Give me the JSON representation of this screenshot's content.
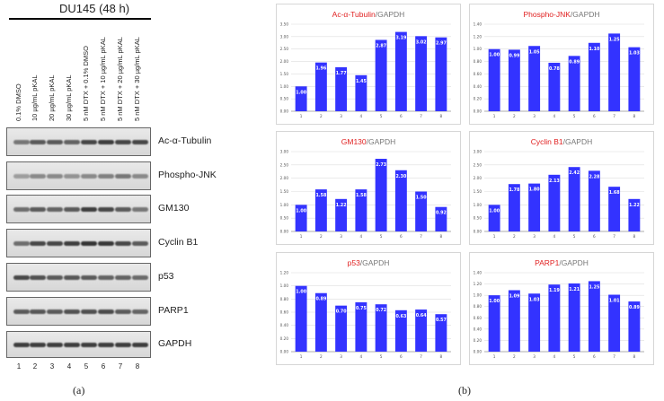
{
  "panel_a": {
    "title": "DU145 (48 h)",
    "lanes": [
      "0.1% DMSO",
      "10 µg/mL pKAL",
      "20 µg/mL pKAL",
      "30 µg/mL pKAL",
      "5 nM DTX + 0.1% DMSO",
      "5 nM DTX + 10 µg/mL pKAL",
      "5 nM DTX + 20 µg/mL pKAL",
      "5 nM DTX + 30 µg/mL pKAL"
    ],
    "lane_numbers": [
      "1",
      "2",
      "3",
      "4",
      "5",
      "6",
      "7",
      "8"
    ],
    "blots": [
      "Ac-α-Tubulin",
      "Phospho-JNK",
      "GM130",
      "Cyclin B1",
      "p53",
      "PARP1",
      "GAPDH"
    ],
    "caption": "(a)"
  },
  "panel_b": {
    "caption": "(b)"
  },
  "colors": {
    "bar": "#3333ff",
    "protein_title": "#e02020",
    "gapdh_title": "#777777",
    "grid": "#dddddd"
  },
  "chart_data": [
    {
      "type": "bar",
      "protein": "Ac-α-Tubulin",
      "reference": "/GAPDH",
      "categories": [
        "1",
        "2",
        "3",
        "4",
        "5",
        "6",
        "7",
        "8"
      ],
      "values": [
        1.0,
        1.96,
        1.77,
        1.45,
        2.87,
        3.19,
        3.02,
        2.97
      ],
      "value_labels": [
        "1.00",
        "1.96",
        "1.77",
        "1.45",
        "2.87",
        "3.19",
        "3.02",
        "2.97"
      ],
      "ylim": [
        0,
        3.5
      ],
      "yticks": [
        "0.00",
        "0.50",
        "1.00",
        "1.50",
        "2.00",
        "2.50",
        "3.00",
        "3.50"
      ],
      "xlabel": "",
      "ylabel": ""
    },
    {
      "type": "bar",
      "protein": "Phospho-JNK",
      "reference": "/GAPDH",
      "categories": [
        "1",
        "2",
        "3",
        "4",
        "5",
        "6",
        "7",
        "8"
      ],
      "values": [
        1.0,
        0.99,
        1.05,
        0.78,
        0.89,
        1.1,
        1.25,
        1.03
      ],
      "value_labels": [
        "1.00",
        "0.99",
        "1.05",
        "0.78",
        "0.89",
        "1.10",
        "1.25",
        "1.03"
      ],
      "ylim": [
        0,
        1.4
      ],
      "yticks": [
        "0.00",
        "0.20",
        "0.40",
        "0.60",
        "0.80",
        "1.00",
        "1.20",
        "1.40"
      ],
      "xlabel": "",
      "ylabel": ""
    },
    {
      "type": "bar",
      "protein": "GM130",
      "reference": "/GAPDH",
      "categories": [
        "1",
        "2",
        "3",
        "4",
        "5",
        "6",
        "7",
        "8"
      ],
      "values": [
        1.0,
        1.58,
        1.22,
        1.58,
        2.73,
        2.3,
        1.5,
        0.92
      ],
      "value_labels": [
        "1.00",
        "1.58",
        "1.22",
        "1.58",
        "2.73",
        "2.30",
        "1.50",
        "0.92"
      ],
      "ylim": [
        0,
        3.0
      ],
      "yticks": [
        "0.00",
        "0.50",
        "1.00",
        "1.50",
        "2.00",
        "2.50",
        "3.00"
      ],
      "xlabel": "",
      "ylabel": ""
    },
    {
      "type": "bar",
      "protein": "Cyclin B1",
      "reference": "/GAPDH",
      "categories": [
        "1",
        "2",
        "3",
        "4",
        "5",
        "6",
        "7",
        "8"
      ],
      "values": [
        1.0,
        1.78,
        1.8,
        2.13,
        2.42,
        2.28,
        1.68,
        1.22
      ],
      "value_labels": [
        "1.00",
        "1.78",
        "1.80",
        "2.13",
        "2.42",
        "2.28",
        "1.68",
        "1.22"
      ],
      "ylim": [
        0,
        3.0
      ],
      "yticks": [
        "0.00",
        "0.50",
        "1.00",
        "1.50",
        "2.00",
        "2.50",
        "3.00"
      ],
      "xlabel": "",
      "ylabel": ""
    },
    {
      "type": "bar",
      "protein": "p53",
      "reference": "/GAPDH",
      "categories": [
        "1",
        "2",
        "3",
        "4",
        "5",
        "6",
        "7",
        "8"
      ],
      "values": [
        1.0,
        0.89,
        0.7,
        0.75,
        0.72,
        0.63,
        0.64,
        0.57
      ],
      "value_labels": [
        "1.00",
        "0.89",
        "0.70",
        "0.75",
        "0.72",
        "0.63",
        "0.64",
        "0.57"
      ],
      "ylim": [
        0,
        1.2
      ],
      "yticks": [
        "0.00",
        "0.20",
        "0.40",
        "0.60",
        "0.80",
        "1.00",
        "1.20"
      ],
      "xlabel": "",
      "ylabel": ""
    },
    {
      "type": "bar",
      "protein": "PARP1",
      "reference": "/GAPDH",
      "categories": [
        "1",
        "2",
        "3",
        "4",
        "5",
        "6",
        "7",
        "8"
      ],
      "values": [
        1.0,
        1.09,
        1.03,
        1.19,
        1.21,
        1.25,
        1.01,
        0.89
      ],
      "value_labels": [
        "1.00",
        "1.09",
        "1.03",
        "1.19",
        "1.21",
        "1.25",
        "1.01",
        "0.89"
      ],
      "ylim": [
        0,
        1.4
      ],
      "yticks": [
        "0.00",
        "0.20",
        "0.40",
        "0.60",
        "0.80",
        "1.00",
        "1.20",
        "1.40"
      ],
      "xlabel": "",
      "ylabel": ""
    }
  ]
}
